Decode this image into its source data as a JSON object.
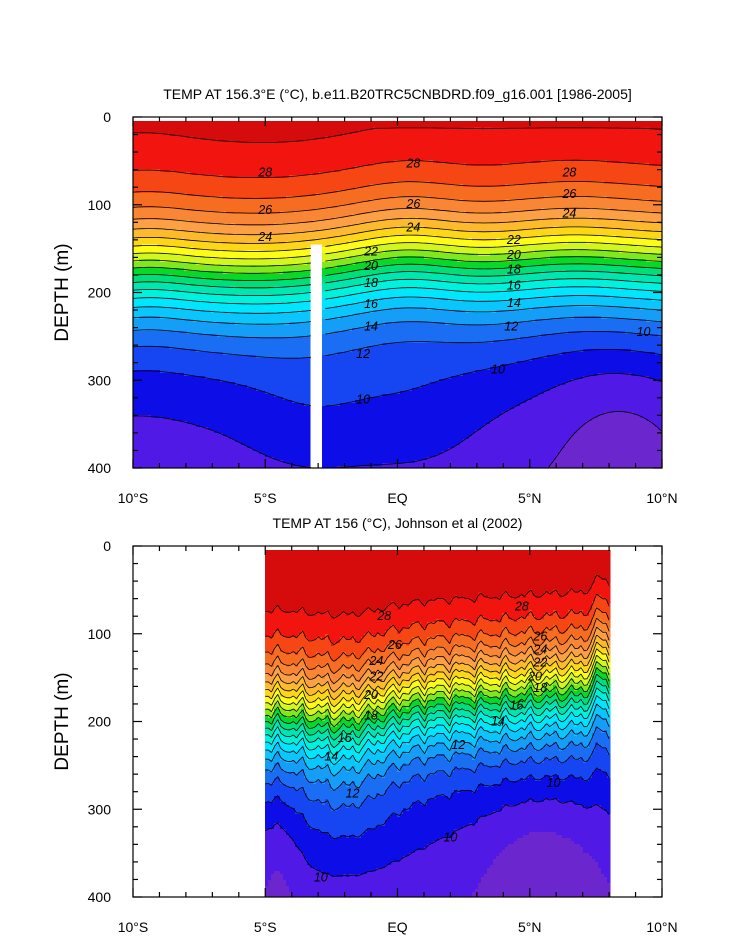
{
  "chart_data": [
    {
      "type": "contour",
      "title": "TEMP AT 156.3°E (°C), b.e11.B20TRC5CNBDRD.f09_g16.001 [1986-2005]",
      "ylabel": "DEPTH (m)",
      "xlim": [
        -10,
        10
      ],
      "ylim": [
        400,
        0
      ],
      "x_ticks": [
        -10,
        -5,
        0,
        5,
        10
      ],
      "x_tick_labels": [
        "10°S",
        "5°S",
        "EQ",
        "5°N",
        "10°N"
      ],
      "y_ticks": [
        0,
        100,
        200,
        300,
        400
      ],
      "y_tick_labels": [
        "0",
        "100",
        "200",
        "300",
        "400"
      ],
      "data_xrange": [
        -10,
        10
      ],
      "mask_band": {
        "x": [
          -3.3,
          -2.8
        ],
        "depth": [
          145,
          400
        ]
      },
      "contour_levels": [
        8,
        9,
        10,
        11,
        12,
        13,
        14,
        15,
        16,
        17,
        18,
        19,
        20,
        21,
        22,
        23,
        24,
        25,
        26,
        27,
        28,
        29
      ],
      "contour_labels": [
        {
          "text": "28",
          "x": -5.0,
          "depth": 63
        },
        {
          "text": "28",
          "x": 0.6,
          "depth": 53
        },
        {
          "text": "28",
          "x": 6.5,
          "depth": 63
        },
        {
          "text": "26",
          "x": -5.0,
          "depth": 106
        },
        {
          "text": "26",
          "x": 0.6,
          "depth": 99
        },
        {
          "text": "26",
          "x": 6.5,
          "depth": 88
        },
        {
          "text": "24",
          "x": -5.0,
          "depth": 137
        },
        {
          "text": "24",
          "x": 0.6,
          "depth": 126
        },
        {
          "text": "24",
          "x": 6.5,
          "depth": 110
        },
        {
          "text": "22",
          "x": -1.0,
          "depth": 153
        },
        {
          "text": "22",
          "x": 4.4,
          "depth": 140
        },
        {
          "text": "20",
          "x": -1.0,
          "depth": 170
        },
        {
          "text": "20",
          "x": 4.4,
          "depth": 157
        },
        {
          "text": "18",
          "x": -1.0,
          "depth": 189
        },
        {
          "text": "18",
          "x": 4.4,
          "depth": 174
        },
        {
          "text": "16",
          "x": -1.0,
          "depth": 213
        },
        {
          "text": "16",
          "x": 4.4,
          "depth": 192
        },
        {
          "text": "14",
          "x": -1.0,
          "depth": 239
        },
        {
          "text": "14",
          "x": 4.4,
          "depth": 212
        },
        {
          "text": "12",
          "x": -1.3,
          "depth": 270
        },
        {
          "text": "12",
          "x": 4.3,
          "depth": 239
        },
        {
          "text": "10",
          "x": -1.3,
          "depth": 322
        },
        {
          "text": "10",
          "x": 3.8,
          "depth": 288
        },
        {
          "text": "10",
          "x": 9.3,
          "depth": 245
        }
      ]
    },
    {
      "type": "contour",
      "title": "TEMP AT 156 (°C), Johnson et al (2002)",
      "ylabel": "DEPTH (m)",
      "xlim": [
        -10,
        10
      ],
      "ylim": [
        400,
        0
      ],
      "x_ticks": [
        -10,
        -5,
        0,
        5,
        10
      ],
      "x_tick_labels": [
        "10°S",
        "5°S",
        "EQ",
        "5°N",
        "10°N"
      ],
      "y_ticks": [
        0,
        100,
        200,
        300,
        400
      ],
      "y_tick_labels": [
        "0",
        "100",
        "200",
        "300",
        "400"
      ],
      "data_xrange": [
        -5,
        8
      ],
      "contour_levels": [
        9,
        10,
        11,
        12,
        13,
        14,
        15,
        16,
        17,
        18,
        19,
        20,
        21,
        22,
        23,
        24,
        25,
        26,
        27,
        28,
        29
      ],
      "contour_labels": [
        {
          "text": "28",
          "x": -0.5,
          "depth": 80
        },
        {
          "text": "28",
          "x": 4.7,
          "depth": 69
        },
        {
          "text": "26",
          "x": -0.1,
          "depth": 113
        },
        {
          "text": "26",
          "x": 5.4,
          "depth": 103
        },
        {
          "text": "24",
          "x": -0.8,
          "depth": 131
        },
        {
          "text": "24",
          "x": 5.4,
          "depth": 118
        },
        {
          "text": "22",
          "x": -0.8,
          "depth": 149
        },
        {
          "text": "22",
          "x": 5.4,
          "depth": 133
        },
        {
          "text": "20",
          "x": -1.0,
          "depth": 170
        },
        {
          "text": "20",
          "x": 5.2,
          "depth": 149
        },
        {
          "text": "18",
          "x": -1.0,
          "depth": 193
        },
        {
          "text": "18",
          "x": 5.4,
          "depth": 162
        },
        {
          "text": "16",
          "x": -2.0,
          "depth": 219
        },
        {
          "text": "16",
          "x": 4.5,
          "depth": 182
        },
        {
          "text": "14",
          "x": -2.5,
          "depth": 240
        },
        {
          "text": "14",
          "x": 3.8,
          "depth": 200
        },
        {
          "text": "12",
          "x": -1.7,
          "depth": 282
        },
        {
          "text": "12",
          "x": 2.3,
          "depth": 227
        },
        {
          "text": "10",
          "x": 5.9,
          "depth": 270
        },
        {
          "text": "10",
          "x": 2.0,
          "depth": 332
        },
        {
          "text": "10",
          "x": -2.9,
          "depth": 378
        }
      ]
    }
  ]
}
